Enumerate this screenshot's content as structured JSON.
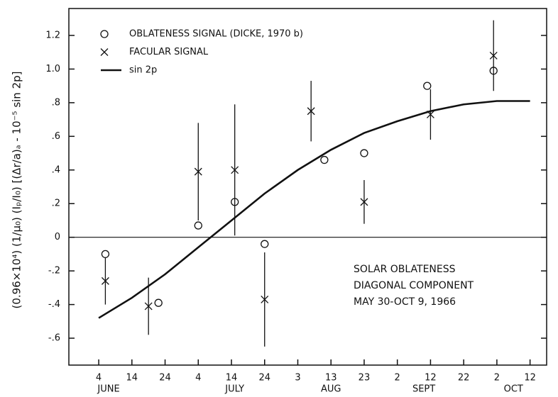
{
  "chart_data": {
    "type": "scatter",
    "ylabel": "(0.96×10⁴) (1/μ₀) (Iₚ/I₀) [(Δr/a)ₐ - 10⁻⁵ sin 2p]",
    "annotation": [
      "SOLAR OBLATENESS",
      "DIAGONAL COMPONENT",
      "MAY 30-OCT 9, 1966"
    ],
    "xlim": [
      146,
      290
    ],
    "xticks": [
      {
        "value": 155,
        "label": "4"
      },
      {
        "value": 165,
        "label": "14"
      },
      {
        "value": 175,
        "label": "24"
      },
      {
        "value": 185,
        "label": "4"
      },
      {
        "value": 195,
        "label": "14"
      },
      {
        "value": 205,
        "label": "24"
      },
      {
        "value": 215,
        "label": "3"
      },
      {
        "value": 225,
        "label": "13"
      },
      {
        "value": 235,
        "label": "23"
      },
      {
        "value": 245,
        "label": "2"
      },
      {
        "value": 255,
        "label": "12"
      },
      {
        "value": 265,
        "label": "22"
      },
      {
        "value": 275,
        "label": "2"
      },
      {
        "value": 285,
        "label": "12"
      }
    ],
    "month_labels": [
      {
        "value": 158,
        "label": "JUNE"
      },
      {
        "value": 196,
        "label": "JULY"
      },
      {
        "value": 225,
        "label": "AUG"
      },
      {
        "value": 253,
        "label": "SEPT"
      },
      {
        "value": 280,
        "label": "OCT"
      }
    ],
    "ylim": [
      -0.76,
      1.36
    ],
    "yticks": [
      {
        "value": 1.2,
        "label": "1.2"
      },
      {
        "value": 1,
        "label": "1.0"
      },
      {
        "value": 0.8,
        "label": ".8"
      },
      {
        "value": 0.6,
        "label": ".6"
      },
      {
        "value": 0.4,
        "label": ".4"
      },
      {
        "value": 0.2,
        "label": ".2"
      },
      0,
      {
        "value": -0.2,
        "label": "-.2"
      },
      {
        "value": -0.4,
        "label": "-.4"
      },
      {
        "value": -0.6,
        "label": "-.6"
      }
    ],
    "zero_line": true,
    "color": "#111111",
    "series": [
      {
        "name": "OBLATENESS SIGNAL (DICKE, 1970 b)",
        "marker": "circle",
        "x": [
          157,
          173,
          185,
          196,
          205,
          223,
          235,
          254,
          274
        ],
        "values": [
          -0.1,
          -0.39,
          0.07,
          0.21,
          -0.04,
          0.46,
          0.5,
          0.9,
          0.99
        ]
      },
      {
        "name": "FACULAR SIGNAL",
        "marker": "x",
        "x": [
          157,
          170,
          185,
          196,
          205,
          219,
          235,
          255,
          274
        ],
        "values": [
          -0.26,
          -0.41,
          0.39,
          0.4,
          -0.37,
          0.75,
          0.21,
          0.73,
          1.08
        ],
        "errors": [
          0.14,
          0.17,
          0.29,
          0.39,
          0.28,
          0.18,
          0.13,
          0.15,
          0.21
        ]
      },
      {
        "name": "sin 2p",
        "marker": "line",
        "x": [
          155,
          165,
          175,
          185,
          195,
          205,
          215,
          225,
          235,
          245,
          255,
          265,
          275,
          285
        ],
        "values": [
          -0.48,
          -0.36,
          -0.22,
          -0.06,
          0.1,
          0.26,
          0.4,
          0.52,
          0.62,
          0.69,
          0.75,
          0.79,
          0.81,
          0.81
        ]
      }
    ]
  }
}
